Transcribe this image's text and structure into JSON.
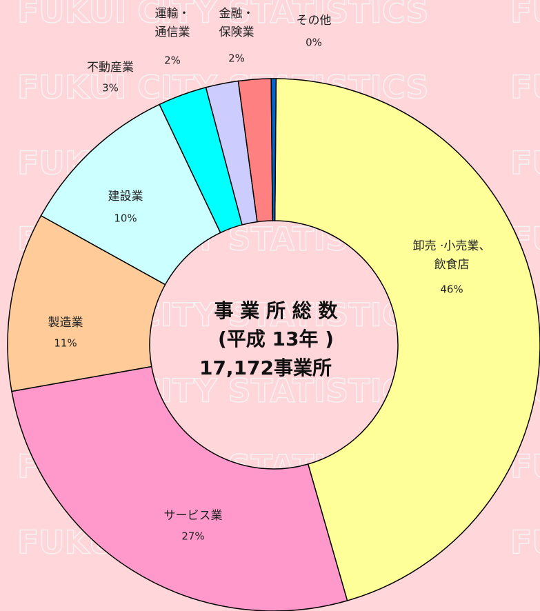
{
  "chart_data": {
    "type": "donut",
    "watermark": "FUKUI CITY STATISTICS",
    "center_text": [
      "事 業 所 総 数",
      "(平成 13年 )",
      "17,172事業所"
    ],
    "categories": [
      "卸売 ·小売業、\n飲食店",
      "サービス業",
      "製造業",
      "建設業",
      "不動産業",
      "運輸・\n通信業",
      "金融・\n保険業",
      "その他"
    ],
    "values": [
      46,
      27,
      11,
      10,
      3,
      2,
      2,
      0.3
    ],
    "value_labels": [
      "46%",
      "27%",
      "11%",
      "10%",
      "3%",
      "2%",
      "2%",
      "0%"
    ],
    "colors": [
      "#ffff99",
      "#ff99cc",
      "#ffcc99",
      "#ccffff",
      "#00ffff",
      "#ccccff",
      "#ff8080",
      "#0066cc"
    ]
  }
}
